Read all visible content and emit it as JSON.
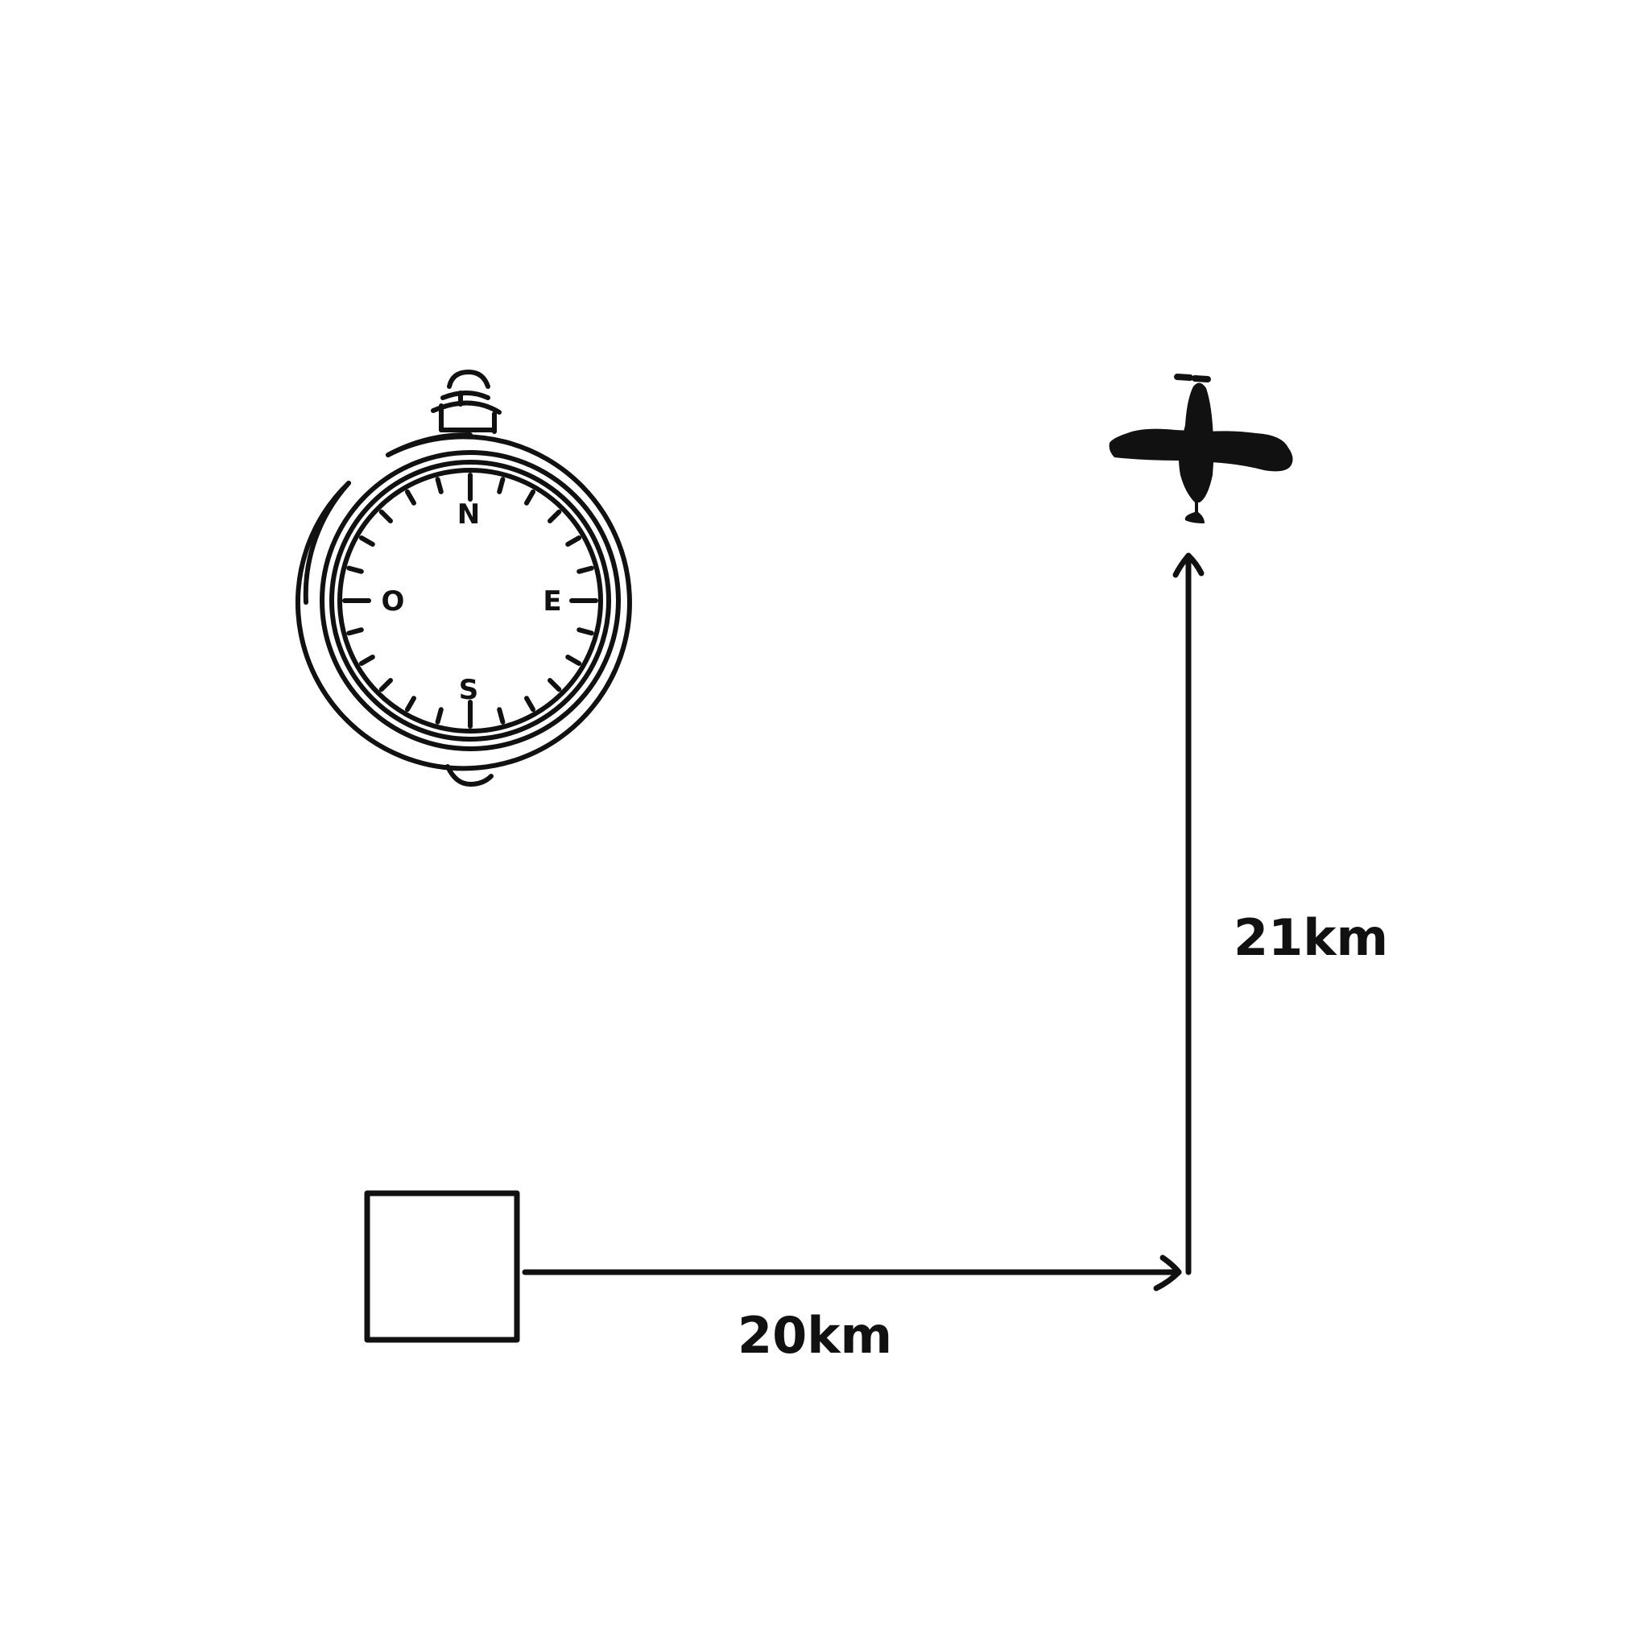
{
  "compass": {
    "letters": {
      "north": "N",
      "east": "E",
      "south": "S",
      "west": "O"
    }
  },
  "measurements": {
    "horizontal_label": "20km",
    "vertical_label": "21km"
  },
  "colors": {
    "ink": "#111111",
    "background": "#ffffff"
  },
  "icons": {
    "compass": "compass-icon",
    "start": "square-box-icon",
    "end": "airplane-icon"
  }
}
